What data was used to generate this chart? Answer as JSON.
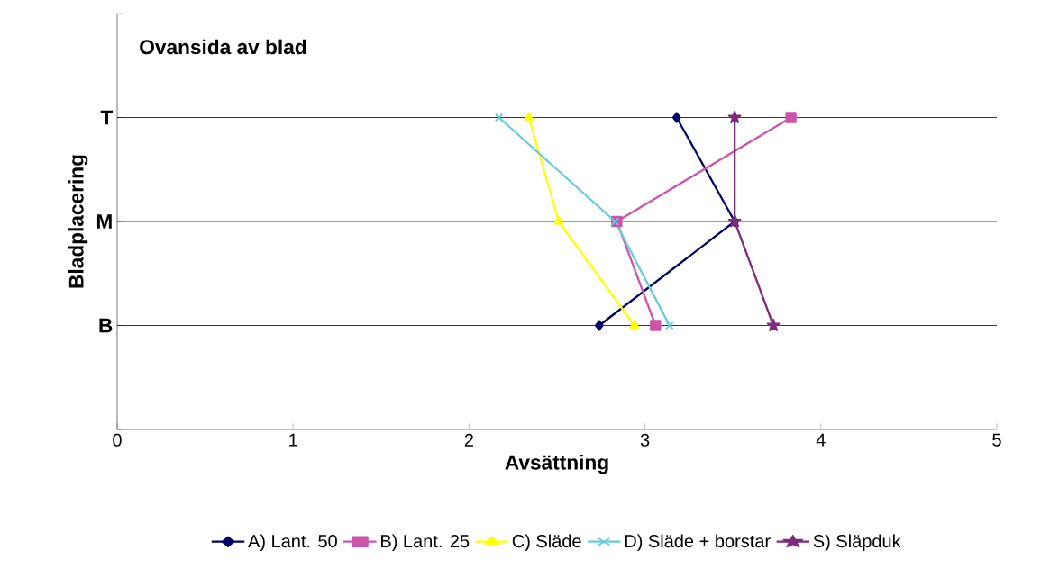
{
  "chart_data": {
    "type": "line",
    "orientation": "horizontal",
    "title": "Ovansida av blad",
    "xlabel": "Avsättning",
    "ylabel": "Bladplacering",
    "xlim": [
      0,
      5
    ],
    "xticks": [
      0,
      1,
      2,
      3,
      4,
      5
    ],
    "categories": [
      "T",
      "M",
      "B"
    ],
    "grid": "y",
    "legend": "bottom",
    "series": [
      {
        "name": "A) Lant. 50",
        "color": "#000066",
        "marker": "diamond",
        "values": [
          3.18,
          3.51,
          2.74
        ]
      },
      {
        "name": "B) Lant. 25",
        "color": "#cc55aa",
        "marker": "square",
        "values": [
          3.83,
          2.84,
          3.06
        ]
      },
      {
        "name": "C) Släde",
        "color": "#ffff00",
        "marker": "triangle",
        "values": [
          2.34,
          2.51,
          2.94
        ]
      },
      {
        "name": "D) Släde + borstar",
        "color": "#66ccdd",
        "marker": "cross",
        "values": [
          2.17,
          2.83,
          3.14
        ]
      },
      {
        "name": "S) Släpduk",
        "color": "#7f2a7f",
        "marker": "star",
        "values": [
          3.51,
          3.51,
          3.73
        ]
      }
    ]
  }
}
